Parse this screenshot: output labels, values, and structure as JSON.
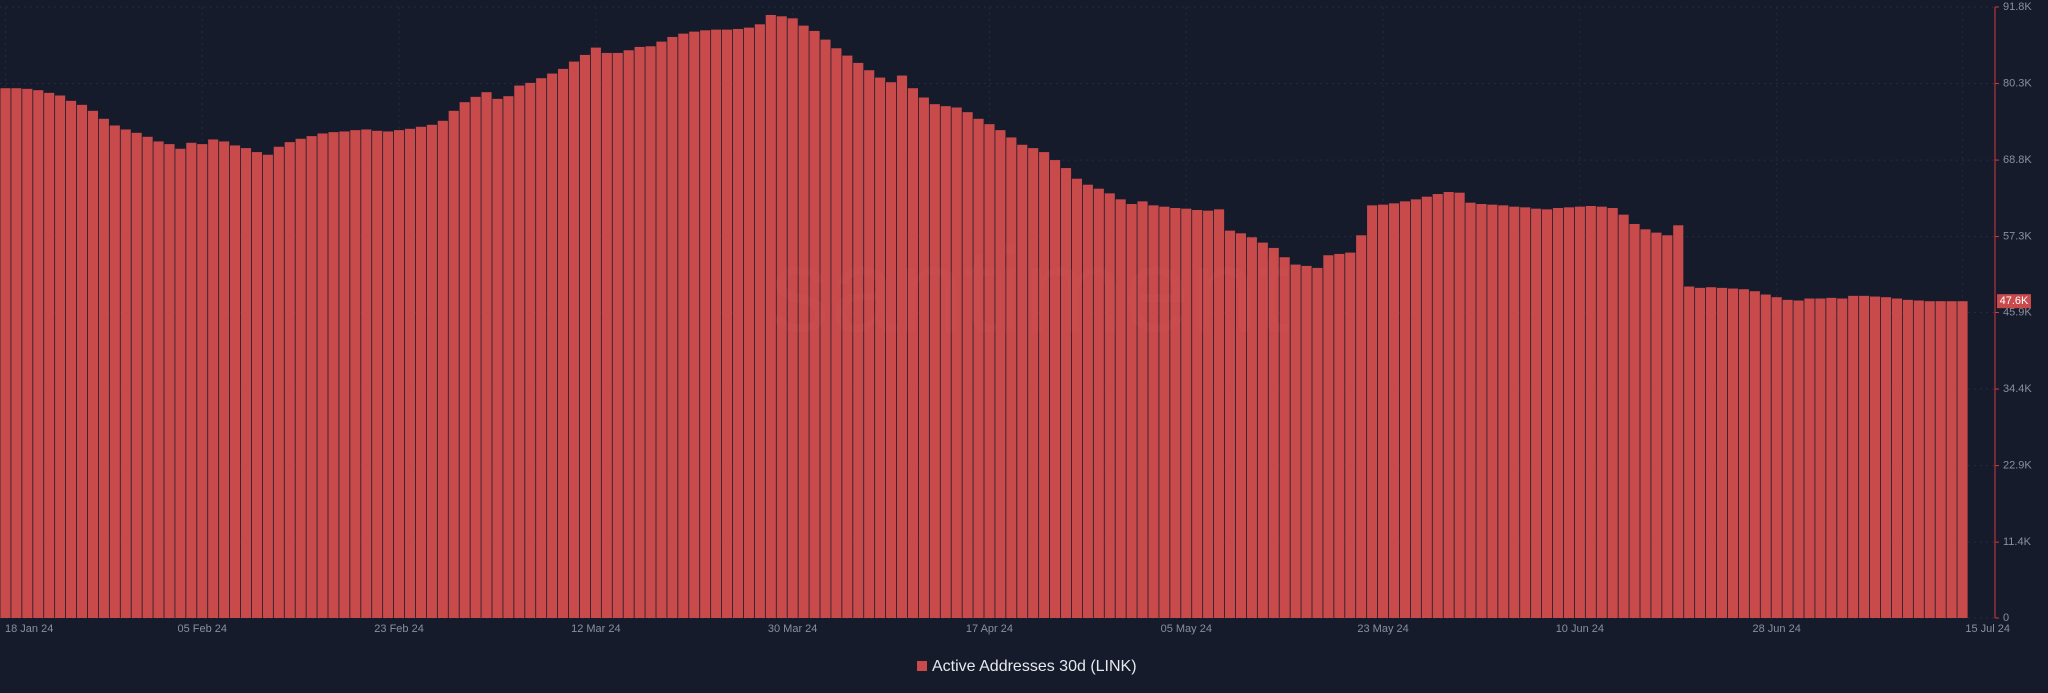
{
  "chart_data": {
    "type": "bar",
    "watermark": "santiment",
    "categories": [
      "18 Jan 24",
      null,
      null,
      null,
      null,
      null,
      null,
      null,
      null,
      null,
      null,
      null,
      null,
      null,
      null,
      null,
      null,
      null,
      "05 Feb 24",
      null,
      null,
      null,
      null,
      null,
      null,
      null,
      null,
      null,
      null,
      null,
      null,
      null,
      null,
      null,
      null,
      null,
      "23 Feb 24",
      null,
      null,
      null,
      null,
      null,
      null,
      null,
      null,
      null,
      null,
      null,
      null,
      null,
      null,
      null,
      null,
      null,
      "12 Mar 24",
      null,
      null,
      null,
      null,
      null,
      null,
      null,
      null,
      null,
      null,
      null,
      null,
      null,
      null,
      null,
      null,
      null,
      "30 Mar 24",
      null,
      null,
      null,
      null,
      null,
      null,
      null,
      null,
      null,
      null,
      null,
      null,
      null,
      null,
      null,
      null,
      null,
      "17 Apr 24",
      null,
      null,
      null,
      null,
      null,
      null,
      null,
      null,
      null,
      null,
      null,
      null,
      null,
      null,
      null,
      null,
      null,
      "05 May 24",
      null,
      null,
      null,
      null,
      null,
      null,
      null,
      null,
      null,
      null,
      null,
      null,
      null,
      null,
      null,
      null,
      null,
      "23 May 24",
      null,
      null,
      null,
      null,
      null,
      null,
      null,
      null,
      null,
      null,
      null,
      null,
      null,
      null,
      null,
      null,
      null,
      "10 Jun 24",
      null,
      null,
      null,
      null,
      null,
      null,
      null,
      null,
      null,
      null,
      null,
      null,
      null,
      null,
      null,
      null,
      null,
      "28 Jun 24",
      null,
      null,
      null,
      null,
      null,
      null,
      null,
      null,
      null,
      null,
      null,
      null,
      null,
      null,
      null,
      null,
      "15 Jul 24"
    ],
    "series": [
      {
        "name": "Active Addresses 30d (LINK)",
        "color": "#c94a4b",
        "values": [
          79600,
          79600,
          79500,
          79300,
          78900,
          78500,
          77700,
          77100,
          76200,
          75000,
          74000,
          73400,
          72900,
          72300,
          71600,
          71200,
          70500,
          71400,
          71200,
          71900,
          71600,
          71000,
          70600,
          70000,
          69600,
          70800,
          71500,
          72000,
          72400,
          72800,
          73000,
          73100,
          73300,
          73400,
          73200,
          73100,
          73300,
          73500,
          73800,
          74100,
          74700,
          76200,
          77500,
          78300,
          79000,
          78000,
          78400,
          80000,
          80400,
          81100,
          81800,
          82500,
          83600,
          84600,
          85700,
          84900,
          84900,
          85300,
          85800,
          85900,
          86600,
          87300,
          87800,
          88100,
          88300,
          88400,
          88400,
          88500,
          88700,
          89200,
          90600,
          90400,
          90100,
          89000,
          88200,
          86900,
          85600,
          84500,
          83400,
          82300,
          81200,
          80500,
          81500,
          79600,
          78200,
          77200,
          76900,
          76700,
          76000,
          75000,
          74200,
          73300,
          72200,
          71100,
          70600,
          70000,
          68800,
          67600,
          66000,
          65100,
          64500,
          63800,
          62900,
          62200,
          62600,
          62000,
          61800,
          61600,
          61500,
          61300,
          61200,
          61400,
          58200,
          57800,
          57200,
          56400,
          55600,
          54200,
          53100,
          52900,
          52600,
          54500,
          54700,
          54900,
          57500,
          62000,
          62100,
          62300,
          62600,
          62900,
          63300,
          63700,
          64000,
          63900,
          62400,
          62200,
          62100,
          62000,
          61800,
          61700,
          61500,
          61400,
          61600,
          61700,
          61800,
          61900,
          61800,
          61600,
          60600,
          59200,
          58400,
          57900,
          57500,
          59000,
          49800,
          49600,
          49700,
          49600,
          49500,
          49400,
          49100,
          48600,
          48200,
          47800,
          47700,
          48000,
          48000,
          48100,
          48000,
          48400,
          48400,
          48300,
          48200,
          48000,
          47800,
          47700,
          47600,
          47600,
          47600,
          47600
        ]
      }
    ],
    "last_value_label": "47.6K",
    "ylim": [
      0,
      91800
    ],
    "yticks": [
      0,
      {
        "value": 11400,
        "label": "11.4K"
      },
      {
        "value": 22900,
        "label": "22.9K"
      },
      {
        "value": 34400,
        "label": "34.4K"
      },
      {
        "value": 45900,
        "label": "45.9K"
      },
      {
        "value": 57300,
        "label": "57.3K"
      },
      {
        "value": 68800,
        "label": "68.8K"
      },
      {
        "value": 80300,
        "label": "80.3K"
      },
      {
        "value": 91800,
        "label": "91.8K"
      }
    ],
    "grid": true
  }
}
